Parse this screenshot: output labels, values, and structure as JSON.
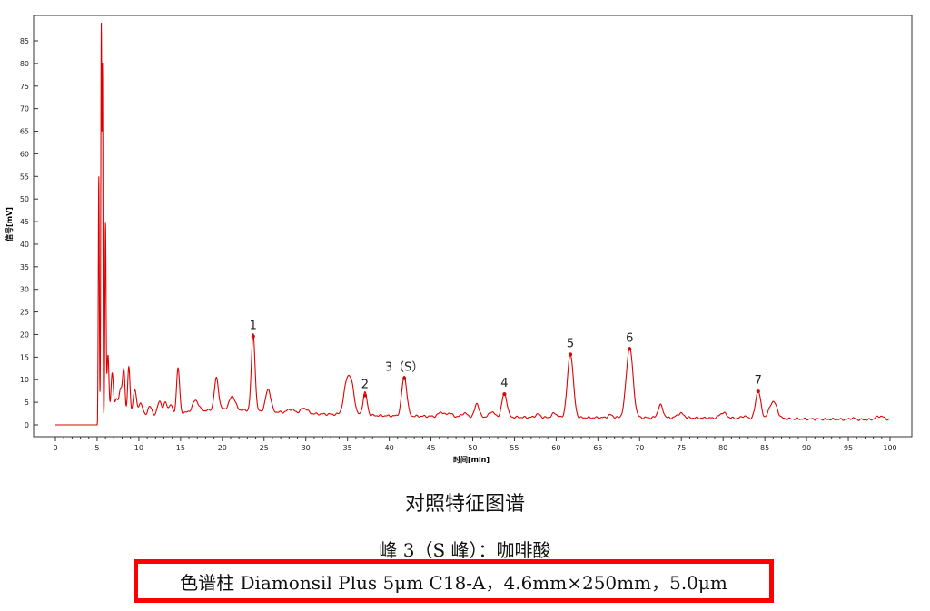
{
  "chart_data": {
    "type": "line",
    "xlabel": "时间[min]",
    "ylabel": "信号[mV]",
    "xlim": [
      0,
      100
    ],
    "ylim": [
      -3,
      90
    ],
    "x_ticks": [
      "0",
      "5",
      "10",
      "15",
      "20",
      "25",
      "30",
      "35",
      "40",
      "45",
      "50",
      "55",
      "60",
      "65",
      "70",
      "75",
      "80",
      "85",
      "90",
      "95",
      "100"
    ],
    "y_ticks": [
      "0",
      "5",
      "10",
      "15",
      "20",
      "25",
      "30",
      "35",
      "40",
      "45",
      "50",
      "55",
      "60",
      "65",
      "70",
      "75",
      "80",
      "85"
    ],
    "series": [
      {
        "color": "#e00000",
        "baseline_points": [
          [
            0,
            0
          ],
          [
            5,
            0
          ],
          [
            5.05,
            1
          ],
          [
            20,
            3.5
          ],
          [
            30,
            2.5
          ],
          [
            40,
            2
          ],
          [
            50,
            1.8
          ],
          [
            60,
            1.6
          ],
          [
            70,
            1.6
          ],
          [
            80,
            1.5
          ],
          [
            90,
            1.3
          ],
          [
            100,
            1.1
          ]
        ],
        "peaks": [
          [
            5.2,
            54,
            0.06
          ],
          [
            5.5,
            87,
            0.06
          ],
          [
            5.65,
            75,
            0.05
          ],
          [
            6.0,
            43,
            0.07
          ],
          [
            6.3,
            14,
            0.12
          ],
          [
            6.8,
            10,
            0.15
          ],
          [
            7.3,
            4,
            0.2
          ],
          [
            7.8,
            6,
            0.2
          ],
          [
            8.2,
            10,
            0.15
          ],
          [
            8.8,
            11,
            0.15
          ],
          [
            9.5,
            6,
            0.2
          ],
          [
            10.2,
            3,
            0.25
          ],
          [
            11.3,
            2,
            0.25
          ],
          [
            12.5,
            3,
            0.25
          ],
          [
            13.2,
            2.5,
            0.2
          ],
          [
            13.8,
            2,
            0.2
          ],
          [
            14.7,
            10,
            0.18
          ],
          [
            16.8,
            2.5,
            0.35
          ],
          [
            19.3,
            7,
            0.25
          ],
          [
            21.2,
            3,
            0.35
          ],
          [
            23.7,
            17,
            0.22
          ],
          [
            25.5,
            5,
            0.3
          ],
          [
            28.2,
            0.8,
            0.4
          ],
          [
            29.8,
            1.2,
            0.4
          ],
          [
            35,
            8,
            0.4
          ],
          [
            35.6,
            4,
            0.3
          ],
          [
            37.1,
            5,
            0.25
          ],
          [
            41.8,
            8.8,
            0.3
          ],
          [
            46.2,
            1,
            0.3
          ],
          [
            47.2,
            0.8,
            0.3
          ],
          [
            49,
            0.8,
            0.3
          ],
          [
            50.5,
            3,
            0.25
          ],
          [
            52.3,
            1.2,
            0.3
          ],
          [
            53.8,
            5.3,
            0.3
          ],
          [
            57.8,
            0.7,
            0.3
          ],
          [
            59.8,
            1,
            0.3
          ],
          [
            61.7,
            14.2,
            0.35
          ],
          [
            66.5,
            0.6,
            0.3
          ],
          [
            68.8,
            15.6,
            0.4
          ],
          [
            72.5,
            2.8,
            0.3
          ],
          [
            74.9,
            1,
            0.4
          ],
          [
            80,
            1.2,
            0.4
          ],
          [
            82.5,
            0.5,
            0.3
          ],
          [
            84.2,
            6.2,
            0.3
          ],
          [
            86,
            3.8,
            0.45
          ],
          [
            95.5,
            0.3,
            0.3
          ],
          [
            98.8,
            0.8,
            0.5
          ]
        ]
      }
    ],
    "peak_labels": [
      {
        "text": "1",
        "x": 23.7,
        "y": 19.6
      },
      {
        "text": "2",
        "x": 37.1,
        "y": 6.5
      },
      {
        "text": "3（S）",
        "x": 41.8,
        "y": 10.3
      },
      {
        "text": "4",
        "x": 53.8,
        "y": 6.8
      },
      {
        "text": "5",
        "x": 61.7,
        "y": 15.6
      },
      {
        "text": "6",
        "x": 68.8,
        "y": 16.8
      },
      {
        "text": "7",
        "x": 84.2,
        "y": 7.4
      }
    ]
  },
  "captions": {
    "title": "对照特征图谱",
    "peak": "峰 3（S 峰）：咖啡酸",
    "column": "色谱柱  Diamonsil Plus 5μm C18-A，4.6mm×250mm，5.0μm"
  }
}
